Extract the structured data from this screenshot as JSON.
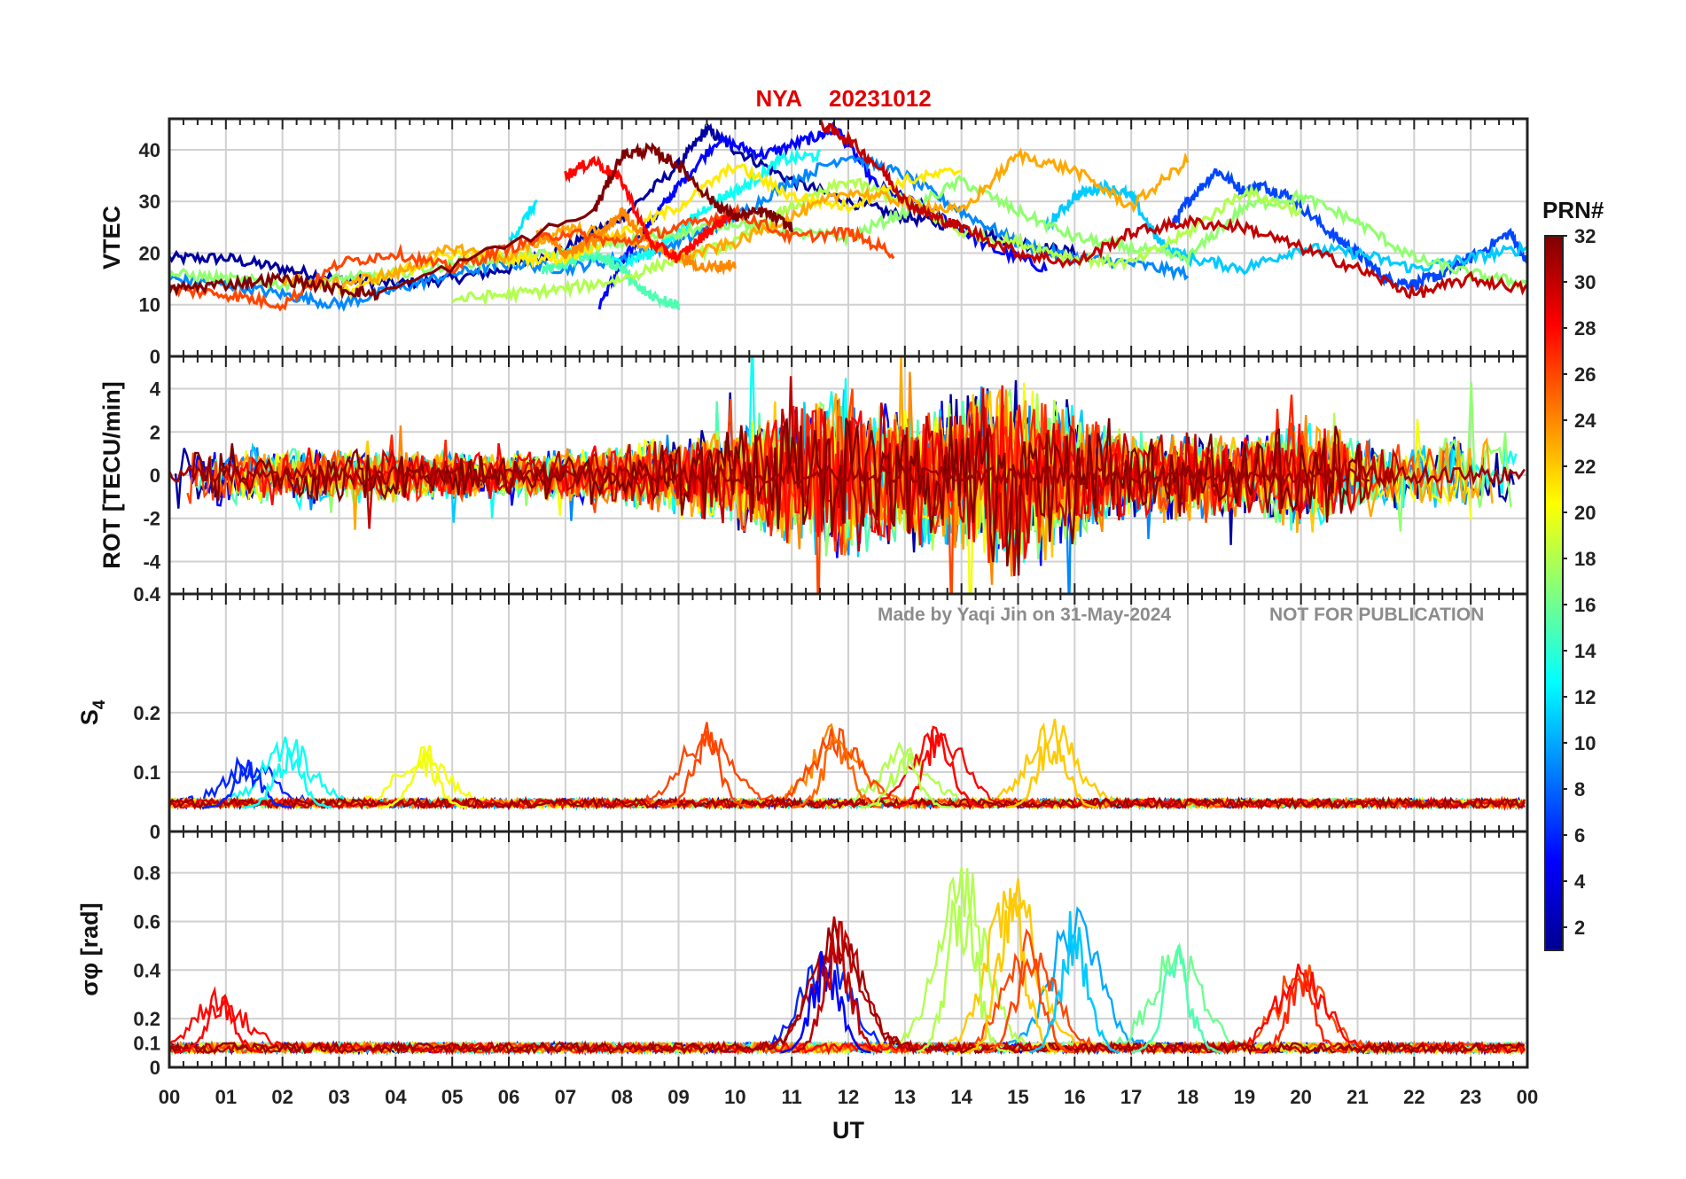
{
  "title_station": "NYA",
  "title_date": "20231012",
  "watermark_author": "Made by Yaqi Jin on 31-May-2024",
  "watermark_note": "NOT FOR PUBLICATION",
  "colors": {
    "title": "#e00000",
    "grid": "#d0d0d0",
    "watermark": "#8c8c8c"
  },
  "chart_data": {
    "type": "line",
    "x_label": "UT",
    "x_range": [
      0,
      24
    ],
    "x_ticks": [
      "00",
      "01",
      "02",
      "03",
      "04",
      "05",
      "06",
      "07",
      "08",
      "09",
      "10",
      "11",
      "12",
      "13",
      "14",
      "15",
      "16",
      "17",
      "18",
      "19",
      "20",
      "21",
      "22",
      "23",
      "00"
    ],
    "colorbar": {
      "title": "PRN#",
      "range": [
        1,
        32
      ],
      "ticks": [
        "2",
        "4",
        "6",
        "8",
        "10",
        "12",
        "14",
        "16",
        "18",
        "20",
        "22",
        "24",
        "26",
        "28",
        "30",
        "32"
      ],
      "colormap": "jet"
    },
    "panels": [
      {
        "id": "vtec",
        "ylabel": "VTEC",
        "ylim": [
          0,
          46
        ],
        "yticks": [
          "0",
          "10",
          "20",
          "30",
          "40"
        ],
        "series": [
          {
            "prn": 2,
            "x": [
              0,
              1,
              2,
              3,
              4,
              5,
              6,
              7,
              8,
              9,
              9.5,
              10,
              11,
              12,
              13,
              14,
              15,
              16
            ],
            "y": [
              19,
              19,
              17,
              15,
              14,
              15,
              17,
              21,
              27,
              37,
              44,
              40,
              34,
              30,
              27,
              25,
              22,
              20
            ]
          },
          {
            "prn": 5,
            "x": [
              7.6,
              8,
              8.5,
              9,
              9.7,
              10.5,
              11.3,
              11.8,
              12.5,
              13.5,
              14.5,
              15.5
            ],
            "y": [
              10,
              18,
              26,
              33,
              42,
              39,
              42,
              44,
              33,
              28,
              21,
              17
            ]
          },
          {
            "prn": 7,
            "x": [
              17.7,
              18,
              18.5,
              19,
              19.3,
              19.8,
              20.5,
              21,
              21.5,
              22,
              22.5,
              23,
              23.7,
              24
            ],
            "y": [
              25,
              30,
              36,
              32,
              33,
              31,
              24,
              20,
              15,
              14,
              16,
              19,
              24,
              18
            ]
          },
          {
            "prn": 9,
            "x": [
              0,
              1,
              2,
              3,
              4,
              5,
              6,
              7,
              8,
              9,
              10,
              11,
              12,
              13,
              14,
              15,
              16,
              17,
              18
            ],
            "y": [
              15,
              14,
              12,
              10,
              13,
              16,
              18,
              17,
              19,
              22,
              27,
              34,
              39,
              35,
              28,
              22,
              19,
              18,
              16
            ]
          },
          {
            "prn": 12,
            "x": [
              6,
              6.5
            ],
            "y": [
              22,
              30
            ]
          },
          {
            "prn": 13,
            "x": [
              7,
              8,
              8.5,
              9,
              9.6,
              10.2,
              10.8,
              11.5
            ],
            "y": [
              20,
              18,
              20,
              24,
              30,
              33,
              38,
              39
            ]
          },
          {
            "prn": 11,
            "x": [
              15.5,
              16,
              16.5,
              17,
              17.5,
              18,
              19,
              20,
              21,
              22,
              23,
              24
            ],
            "y": [
              25,
              31,
              33,
              31,
              22,
              19,
              17,
              21,
              20,
              17,
              19,
              21
            ]
          },
          {
            "prn": 15,
            "x": [
              6.6,
              7,
              7.5,
              8,
              8.3,
              8.7,
              9
            ],
            "y": [
              17,
              18,
              20,
              17,
              13,
              11,
              10
            ]
          },
          {
            "prn": 17,
            "x": [
              0,
              1,
              2,
              3,
              4,
              5,
              6,
              7,
              8,
              9,
              10,
              11,
              12,
              13,
              14,
              15,
              16,
              17,
              18,
              19,
              20,
              21,
              22,
              23,
              24
            ],
            "y": [
              16,
              15,
              14,
              15,
              16,
              18,
              19,
              20,
              22,
              24,
              26,
              24,
              23,
              28,
              34,
              28,
              23,
              21,
              19,
              29,
              31,
              26,
              19,
              16,
              14
            ]
          },
          {
            "prn": 18,
            "x": [
              5,
              6,
              7,
              8,
              9,
              10,
              11,
              12,
              13,
              14,
              15,
              16,
              17,
              18,
              19,
              20
            ],
            "y": [
              11,
              12,
              13,
              15,
              19,
              22,
              29,
              34,
              30,
              24,
              22,
              19,
              18,
              24,
              32,
              28
            ]
          },
          {
            "prn": 21,
            "x": [
              3,
              4,
              5,
              6,
              7,
              8,
              9,
              10,
              11,
              12,
              13,
              14
            ],
            "y": [
              12,
              16,
              20,
              19,
              19,
              24,
              29,
              37,
              31,
              29,
              34,
              36
            ]
          },
          {
            "prn": 23,
            "x": [
              2,
              3,
              4,
              5,
              6,
              7,
              8,
              9,
              10,
              11,
              12,
              13,
              14,
              15,
              16,
              17,
              18
            ],
            "y": [
              15,
              14,
              16,
              21,
              19,
              25,
              23,
              19,
              22,
              27,
              32,
              30,
              28,
              39,
              36,
              29,
              38
            ]
          },
          {
            "prn": 24,
            "x": [
              6.5,
              7,
              7.5,
              8,
              8.5,
              9,
              9.5,
              10
            ],
            "y": [
              24,
              20,
              22,
              28,
              22,
              19,
              17,
              18
            ]
          },
          {
            "prn": 26,
            "x": [
              0,
              1,
              2,
              3,
              4,
              5,
              6,
              7,
              8,
              9,
              10,
              11,
              12,
              12.8
            ],
            "y": [
              13,
              12,
              10,
              18,
              20,
              17,
              21,
              24,
              22,
              25,
              28,
              23,
              24,
              20
            ]
          },
          {
            "prn": 28,
            "x": [
              7,
              7.5,
              8,
              8.5,
              9,
              9.5,
              10
            ],
            "y": [
              35,
              38,
              34,
              22,
              19,
              24,
              28
            ]
          },
          {
            "prn": 30,
            "x": [
              11.5,
              12,
              12.6,
              13,
              13.5,
              14,
              15,
              16,
              17,
              18,
              19,
              20,
              21,
              22,
              23,
              24
            ],
            "y": [
              45,
              42,
              36,
              30,
              27,
              25,
              20,
              18,
              24,
              26,
              25,
              21,
              17,
              12,
              15,
              13
            ]
          },
          {
            "prn": 32,
            "x": [
              0,
              1,
              2,
              3,
              3.7,
              7.5,
              8,
              8.5,
              9,
              9.6,
              10,
              10.5,
              11
            ],
            "y": [
              13,
              14,
              15,
              13,
              12,
              28,
              39,
              40,
              37,
              30,
              27,
              28,
              25
            ]
          }
        ]
      },
      {
        "id": "rot",
        "ylabel": "ROT [TECU/min]",
        "ylim": [
          -5.5,
          5.5
        ],
        "yticks": [
          "-4",
          "-2",
          "0",
          "2",
          "4"
        ],
        "yticks_values": [
          -4,
          -2,
          0,
          2,
          4
        ],
        "amplitude_profile_hours": [
          0,
          2,
          4,
          6,
          8,
          10,
          11,
          12,
          13,
          14,
          15,
          16,
          17,
          18,
          19,
          20,
          21,
          22,
          23,
          24
        ],
        "amplitude_profile_tecu_per_min": [
          1.4,
          1.2,
          1.1,
          0.9,
          1.3,
          2.3,
          3.2,
          3.8,
          2.6,
          3.6,
          4.4,
          2.9,
          1.8,
          1.9,
          1.6,
          2.6,
          1.5,
          1.3,
          1.8,
          1.5
        ]
      },
      {
        "id": "s4",
        "ylabel": "S4",
        "ylim": [
          0,
          0.4
        ],
        "yticks": [
          "0",
          "0.1",
          "0.2",
          "0.4"
        ],
        "yticks_values": [
          0,
          0.1,
          0.2,
          0.4
        ],
        "peaks": [
          {
            "prn": 6,
            "x": 1.4,
            "y": 0.12
          },
          {
            "prn": 13,
            "x": 2.1,
            "y": 0.15
          },
          {
            "prn": 20,
            "x": 4.5,
            "y": 0.14
          },
          {
            "prn": 26,
            "x": 9.5,
            "y": 0.18
          },
          {
            "prn": 25,
            "x": 11.8,
            "y": 0.18
          },
          {
            "prn": 28,
            "x": 13.6,
            "y": 0.19
          },
          {
            "prn": 22,
            "x": 15.6,
            "y": 0.19
          },
          {
            "prn": 18,
            "x": 13.0,
            "y": 0.14
          }
        ]
      },
      {
        "id": "sigma_phi",
        "ylabel": "σφ [rad]",
        "ylim": [
          0,
          0.97
        ],
        "yticks": [
          "0",
          "0.1",
          "0.2",
          "0.4",
          "0.6",
          "0.8"
        ],
        "yticks_values": [
          0,
          0.1,
          0.2,
          0.4,
          0.6,
          0.8
        ],
        "peaks": [
          {
            "prn": 5,
            "x": 11.6,
            "y": 0.51
          },
          {
            "prn": 30,
            "x": 11.8,
            "y": 0.63
          },
          {
            "prn": 18,
            "x": 14.0,
            "y": 0.86
          },
          {
            "prn": 22,
            "x": 14.9,
            "y": 0.8
          },
          {
            "prn": 26,
            "x": 15.2,
            "y": 0.55
          },
          {
            "prn": 11,
            "x": 16.0,
            "y": 0.68
          },
          {
            "prn": 15,
            "x": 17.8,
            "y": 0.52
          },
          {
            "prn": 27,
            "x": 20.0,
            "y": 0.42
          },
          {
            "prn": 28,
            "x": 0.9,
            "y": 0.31
          }
        ]
      }
    ]
  }
}
